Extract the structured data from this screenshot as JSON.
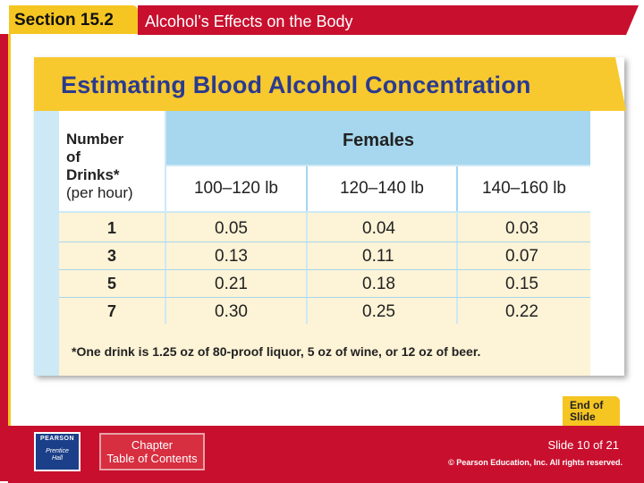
{
  "header": {
    "section_label": "Section 15.2",
    "title": "Alcohol’s Effects on the Body"
  },
  "card": {
    "title": "Estimating Blood Alcohol Concentration",
    "table": {
      "row_header_lines": [
        "Number",
        "of",
        "Drinks*",
        "(per hour)"
      ],
      "group_header": "Females",
      "weight_columns": [
        "100–120 lb",
        "120–140 lb",
        "140–160 lb"
      ],
      "rows": [
        {
          "drinks": "1",
          "values": [
            "0.05",
            "0.04",
            "0.03"
          ]
        },
        {
          "drinks": "3",
          "values": [
            "0.13",
            "0.11",
            "0.07"
          ]
        },
        {
          "drinks": "5",
          "values": [
            "0.21",
            "0.18",
            "0.15"
          ]
        },
        {
          "drinks": "7",
          "values": [
            "0.30",
            "0.25",
            "0.22"
          ]
        }
      ]
    },
    "footnote": "*One drink is 1.25 oz of 80-proof liquor, 5 oz of wine, or 12 oz of beer."
  },
  "end_badge": [
    "End of",
    "Slide"
  ],
  "footer": {
    "logo_name": "PEARSON",
    "logo_sub": [
      "Prentice",
      "Hall"
    ],
    "toc_label": [
      "Chapter",
      "Table of Contents"
    ],
    "slide_number": "Slide 10 of 21",
    "copyright": "© Pearson Education, Inc. All rights reserved."
  },
  "colors": {
    "accent_red": "#c8102e",
    "accent_gold": "#f5c522",
    "title_blue": "#2b3a8f",
    "table_blue": "#a6d7ee",
    "table_cream": "#fdf3d6"
  }
}
